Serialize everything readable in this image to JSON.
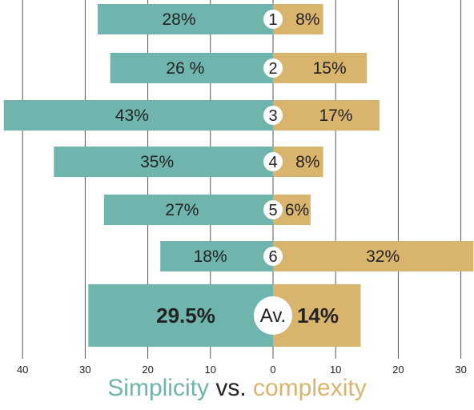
{
  "chart_data": {
    "type": "bar",
    "orientation": "diverging-horizontal",
    "title": {
      "left": "Simplicity",
      "middle": "vs.",
      "right": "complexity"
    },
    "x_ticks": [
      "40",
      "30",
      "20",
      "10",
      "0",
      "10",
      "20",
      "30"
    ],
    "xlim_left": [
      0,
      40
    ],
    "xlim_right": [
      0,
      30
    ],
    "grid": true,
    "colors": {
      "simplicity": "#6fb5ad",
      "complexity": "#d9b46c",
      "grid": "#555555",
      "text": "#222222",
      "title_mid": "#222222"
    },
    "rows": [
      {
        "label": "1",
        "simplicity": 28,
        "complexity": 8,
        "simplicity_text": "28%",
        "complexity_text": "8%"
      },
      {
        "label": "2",
        "simplicity": 26,
        "complexity": 15,
        "simplicity_text": "26 %",
        "complexity_text": "15%"
      },
      {
        "label": "3",
        "simplicity": 43,
        "complexity": 17,
        "simplicity_text": "43%",
        "complexity_text": "17%"
      },
      {
        "label": "4",
        "simplicity": 35,
        "complexity": 8,
        "simplicity_text": "35%",
        "complexity_text": "8%"
      },
      {
        "label": "5",
        "simplicity": 27,
        "complexity": 6,
        "simplicity_text": "27%",
        "complexity_text": "6%"
      },
      {
        "label": "6",
        "simplicity": 18,
        "complexity": 32,
        "simplicity_text": "18%",
        "complexity_text": "32%"
      },
      {
        "label": "Av.",
        "simplicity": 29.5,
        "complexity": 14,
        "simplicity_text": "29.5%",
        "complexity_text": "14%",
        "emphasis": true
      }
    ]
  }
}
